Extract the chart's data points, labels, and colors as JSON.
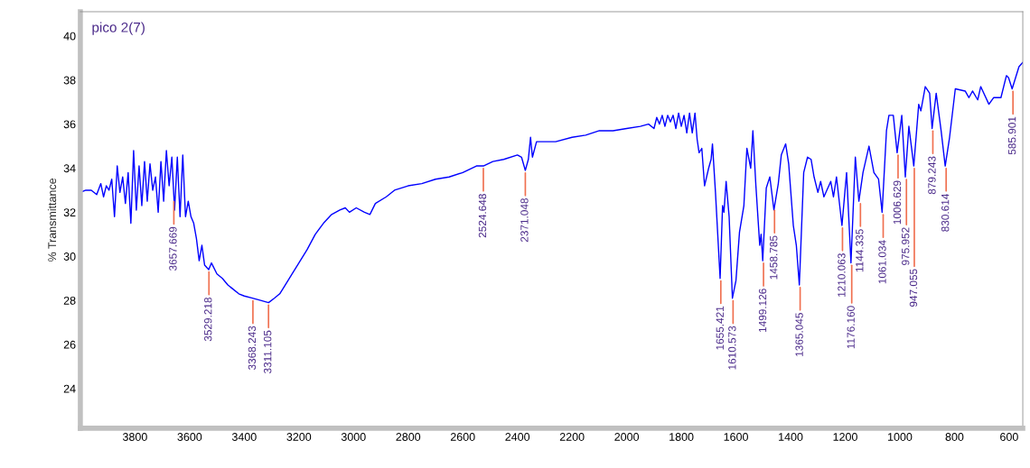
{
  "chart_data": {
    "type": "line",
    "title": "pico 2(7)",
    "ylabel": "% Transmittance",
    "xlim": [
      4000,
      550
    ],
    "ylim": [
      22.2,
      41.1
    ],
    "xticks": [
      3800,
      3600,
      3400,
      3200,
      3000,
      2800,
      2600,
      2400,
      2200,
      2000,
      1800,
      1600,
      1400,
      1200,
      1000,
      800,
      600
    ],
    "yticks": [
      24,
      26,
      28,
      30,
      32,
      34,
      36,
      38,
      40
    ],
    "grid": false,
    "marker": "none",
    "line_style": "solid",
    "series": [
      {
        "color": "#0000ff",
        "x": [
          4000,
          3980,
          3960,
          3940,
          3925,
          3915,
          3905,
          3895,
          3885,
          3875,
          3865,
          3855,
          3845,
          3835,
          3825,
          3815,
          3805,
          3795,
          3785,
          3775,
          3765,
          3755,
          3745,
          3735,
          3725,
          3715,
          3705,
          3695,
          3685,
          3675,
          3665,
          3655,
          3645,
          3635,
          3625,
          3615,
          3605,
          3595,
          3585,
          3575,
          3565,
          3555,
          3545,
          3530,
          3520,
          3500,
          3480,
          3460,
          3440,
          3420,
          3400,
          3370,
          3340,
          3311,
          3290,
          3270,
          3250,
          3220,
          3200,
          3170,
          3140,
          3110,
          3080,
          3050,
          3030,
          3015,
          2990,
          2960,
          2940,
          2920,
          2880,
          2850,
          2800,
          2750,
          2700,
          2650,
          2600,
          2550,
          2524.6,
          2490,
          2450,
          2400,
          2385,
          2371,
          2360,
          2352,
          2345,
          2330,
          2300,
          2260,
          2200,
          2150,
          2100,
          2050,
          2000,
          1950,
          1920,
          1900,
          1890,
          1880,
          1870,
          1860,
          1850,
          1840,
          1830,
          1820,
          1810,
          1800,
          1790,
          1780,
          1770,
          1760,
          1750,
          1742,
          1735,
          1725,
          1715,
          1700,
          1691,
          1686,
          1675,
          1658,
          1649,
          1644,
          1636,
          1625,
          1613,
          1600,
          1587,
          1571,
          1560,
          1546,
          1538,
          1527,
          1513,
          1508,
          1502,
          1489,
          1476,
          1461,
          1445,
          1434,
          1418,
          1407,
          1390,
          1379,
          1368,
          1352,
          1338,
          1325,
          1314,
          1300,
          1290,
          1278,
          1253,
          1243,
          1232,
          1212,
          1195,
          1179,
          1163,
          1150,
          1135,
          1113,
          1095,
          1078,
          1065,
          1049,
          1040,
          1024,
          1010,
          993,
          980,
          967,
          949,
          931,
          923,
          907,
          891,
          882,
          867,
          849,
          834,
          818,
          797,
          761,
          747,
          734,
          715,
          704,
          674,
          657,
          630,
          610,
          602,
          589,
          564,
          550
        ],
        "values": [
          32.9,
          33.0,
          33.0,
          32.8,
          33.3,
          32.7,
          33.2,
          33.0,
          33.5,
          31.8,
          34.1,
          32.9,
          33.6,
          32.4,
          33.8,
          31.5,
          34.8,
          32.1,
          34.1,
          32.3,
          34.3,
          32.5,
          34.2,
          33.0,
          33.6,
          32.0,
          34.3,
          32.5,
          34.8,
          33.2,
          34.5,
          32.1,
          34.5,
          31.8,
          34.6,
          31.8,
          32.5,
          31.8,
          31.5,
          30.8,
          29.8,
          30.5,
          29.6,
          29.4,
          29.7,
          29.2,
          29.0,
          28.7,
          28.5,
          28.3,
          28.2,
          28.1,
          28.0,
          27.9,
          28.1,
          28.3,
          28.7,
          29.3,
          29.7,
          30.3,
          31.0,
          31.5,
          31.9,
          32.1,
          32.2,
          32.0,
          32.2,
          32.0,
          31.9,
          32.4,
          32.7,
          33.0,
          33.2,
          33.3,
          33.5,
          33.6,
          33.8,
          34.1,
          34.1,
          34.3,
          34.4,
          34.6,
          34.5,
          33.9,
          34.4,
          35.4,
          34.5,
          35.2,
          35.2,
          35.2,
          35.4,
          35.5,
          35.7,
          35.7,
          35.8,
          35.9,
          36.0,
          35.8,
          36.3,
          36.0,
          36.4,
          35.9,
          36.4,
          36.1,
          36.4,
          35.8,
          36.5,
          35.9,
          36.4,
          35.6,
          36.5,
          35.6,
          36.5,
          35.3,
          34.7,
          34.9,
          33.2,
          34.0,
          34.4,
          35.1,
          32.9,
          29.0,
          32.3,
          32.0,
          33.4,
          31.8,
          28.1,
          28.9,
          31.1,
          32.3,
          34.9,
          34.0,
          35.7,
          33.2,
          30.5,
          31.0,
          29.8,
          33.1,
          33.6,
          32.1,
          33.3,
          34.6,
          35.1,
          34.2,
          31.4,
          30.5,
          28.7,
          33.8,
          34.5,
          34.4,
          33.6,
          32.9,
          33.4,
          32.7,
          33.4,
          32.7,
          33.6,
          31.4,
          33.8,
          29.7,
          34.5,
          32.5,
          33.8,
          35.0,
          33.8,
          33.5,
          32.0,
          35.7,
          36.4,
          36.4,
          34.7,
          36.4,
          33.6,
          35.9,
          34.1,
          36.9,
          36.6,
          37.7,
          37.4,
          35.8,
          37.4,
          35.7,
          34.1,
          35.4,
          37.6,
          37.5,
          37.2,
          37.5,
          37.1,
          37.7,
          36.9,
          37.2,
          37.2,
          38.2,
          38.1,
          37.6,
          38.6,
          38.8
        ]
      }
    ],
    "annotations": [
      {
        "text": "3657.669",
        "x": 3657.669,
        "y": 32.6
      },
      {
        "text": "3529.218",
        "x": 3529.218,
        "y": 29.4
      },
      {
        "text": "3368.243",
        "x": 3368.243,
        "y": 28.1
      },
      {
        "text": "3311.105",
        "x": 3311.105,
        "y": 27.9
      },
      {
        "text": "2524.648",
        "x": 2524.648,
        "y": 34.1
      },
      {
        "text": "2371.048",
        "x": 2371.048,
        "y": 33.9
      },
      {
        "text": "1655.421",
        "x": 1655.421,
        "y": 29.0
      },
      {
        "text": "1610.573",
        "x": 1610.573,
        "y": 28.1
      },
      {
        "text": "1499.126",
        "x": 1499.126,
        "y": 29.8
      },
      {
        "text": "1458.785",
        "x": 1458.785,
        "y": 32.2
      },
      {
        "text": "1365.045",
        "x": 1365.045,
        "y": 28.7
      },
      {
        "text": "1210.063",
        "x": 1210.063,
        "y": 31.4
      },
      {
        "text": "1176.160",
        "x": 1176.16,
        "y": 29.7
      },
      {
        "text": "1144.335",
        "x": 1144.335,
        "y": 32.5
      },
      {
        "text": "1061.034",
        "x": 1061.034,
        "y": 32.0
      },
      {
        "text": "1006.629",
        "x": 1006.629,
        "y": 34.7
      },
      {
        "text": "975.952",
        "x": 975.952,
        "y": 33.6
      },
      {
        "text": "947.055",
        "x": 947.055,
        "y": 34.1
      },
      {
        "text": "879.243",
        "x": 879.243,
        "y": 35.8
      },
      {
        "text": "830.614",
        "x": 830.614,
        "y": 34.1
      },
      {
        "text": "585.901",
        "x": 585.901,
        "y": 37.6
      }
    ]
  }
}
